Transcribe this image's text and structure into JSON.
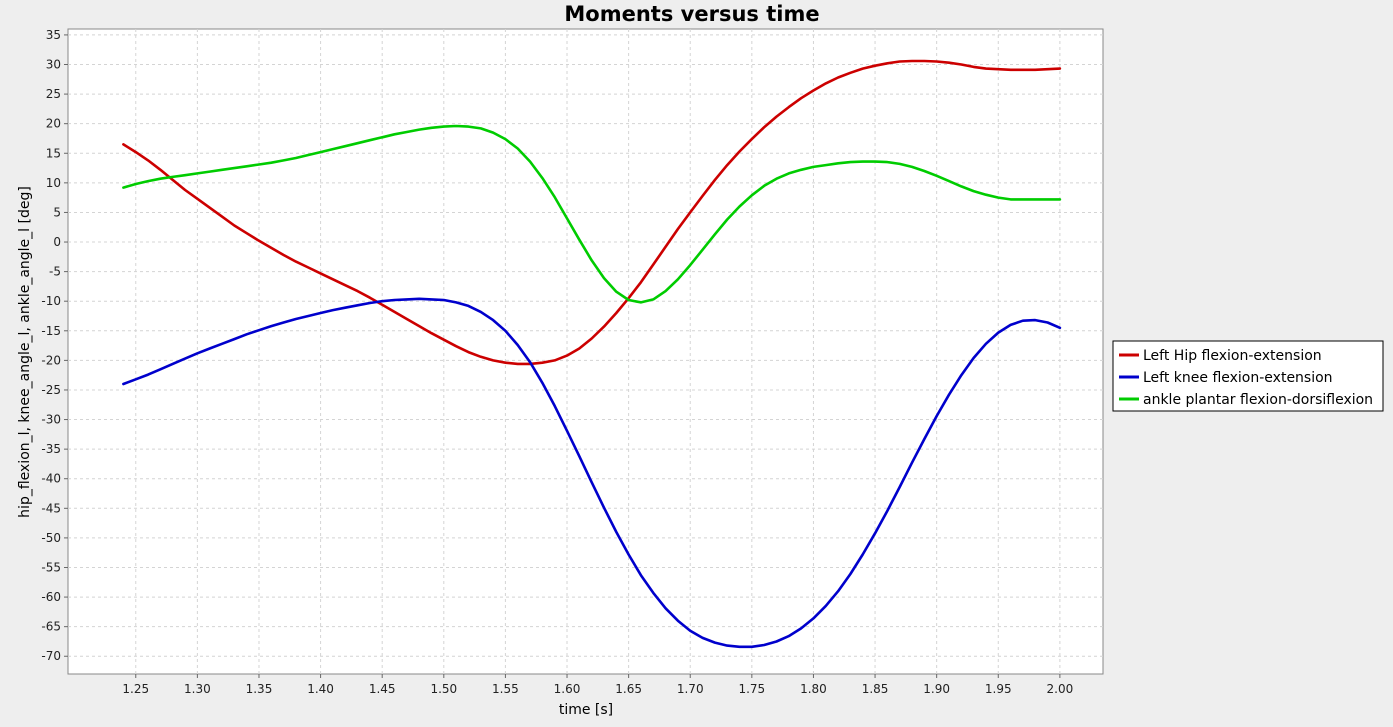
{
  "chart_data": {
    "type": "line",
    "title": "Moments versus time",
    "xlabel": "time [s]",
    "ylabel": "hip_flexion_l, knee_angle_l, ankle_angle_l [deg]",
    "xlim": [
      1.195,
      2.035
    ],
    "ylim": [
      -73,
      36
    ],
    "xticks": [
      "1.25",
      "1.30",
      "1.35",
      "1.40",
      "1.45",
      "1.50",
      "1.55",
      "1.60",
      "1.65",
      "1.70",
      "1.75",
      "1.80",
      "1.85",
      "1.90",
      "1.95",
      "2.00"
    ],
    "yticks": [
      "35",
      "30",
      "25",
      "20",
      "15",
      "10",
      "5",
      "0",
      "-5",
      "-10",
      "-15",
      "-20",
      "-25",
      "-30",
      "-35",
      "-40",
      "-45",
      "-50",
      "-55",
      "-60",
      "-65",
      "-70"
    ],
    "grid": true,
    "legend_position": "right",
    "series": [
      {
        "name": "Left Hip flexion-extension",
        "color": "#cc0000",
        "x": [
          1.24,
          1.25,
          1.26,
          1.27,
          1.28,
          1.29,
          1.3,
          1.31,
          1.32,
          1.33,
          1.34,
          1.35,
          1.36,
          1.37,
          1.38,
          1.39,
          1.4,
          1.41,
          1.42,
          1.43,
          1.44,
          1.45,
          1.46,
          1.47,
          1.48,
          1.49,
          1.5,
          1.51,
          1.52,
          1.53,
          1.54,
          1.55,
          1.56,
          1.57,
          1.58,
          1.59,
          1.6,
          1.61,
          1.62,
          1.63,
          1.64,
          1.65,
          1.66,
          1.67,
          1.68,
          1.69,
          1.7,
          1.71,
          1.72,
          1.73,
          1.74,
          1.75,
          1.76,
          1.77,
          1.78,
          1.79,
          1.8,
          1.81,
          1.82,
          1.83,
          1.84,
          1.85,
          1.86,
          1.87,
          1.88,
          1.89,
          1.9,
          1.91,
          1.92,
          1.93,
          1.94,
          1.95,
          1.96,
          1.97,
          1.98,
          1.99,
          2.0
        ],
        "y": [
          16.5,
          15.2,
          13.8,
          12.2,
          10.5,
          8.8,
          7.3,
          5.8,
          4.3,
          2.8,
          1.5,
          0.2,
          -1.0,
          -2.2,
          -3.3,
          -4.3,
          -5.3,
          -6.3,
          -7.3,
          -8.3,
          -9.4,
          -10.6,
          -11.8,
          -13.0,
          -14.2,
          -15.4,
          -16.5,
          -17.6,
          -18.6,
          -19.4,
          -20.0,
          -20.4,
          -20.6,
          -20.6,
          -20.4,
          -20.0,
          -19.2,
          -18.0,
          -16.3,
          -14.3,
          -12.0,
          -9.5,
          -6.8,
          -3.8,
          -0.8,
          2.2,
          5.0,
          7.8,
          10.5,
          13.0,
          15.3,
          17.4,
          19.4,
          21.2,
          22.8,
          24.3,
          25.6,
          26.8,
          27.8,
          28.6,
          29.3,
          29.8,
          30.2,
          30.5,
          30.6,
          30.6,
          30.5,
          30.3,
          30.0,
          29.6,
          29.3,
          29.2,
          29.1,
          29.1,
          29.1,
          29.2,
          29.3
        ]
      },
      {
        "name": "Left knee flexion-extension",
        "color": "#0000cc",
        "x": [
          1.24,
          1.25,
          1.26,
          1.27,
          1.28,
          1.29,
          1.3,
          1.31,
          1.32,
          1.33,
          1.34,
          1.35,
          1.36,
          1.37,
          1.38,
          1.39,
          1.4,
          1.41,
          1.42,
          1.43,
          1.44,
          1.45,
          1.46,
          1.47,
          1.48,
          1.49,
          1.5,
          1.51,
          1.52,
          1.53,
          1.54,
          1.55,
          1.56,
          1.57,
          1.58,
          1.59,
          1.6,
          1.61,
          1.62,
          1.63,
          1.64,
          1.65,
          1.66,
          1.67,
          1.68,
          1.69,
          1.7,
          1.71,
          1.72,
          1.73,
          1.74,
          1.75,
          1.76,
          1.77,
          1.78,
          1.79,
          1.8,
          1.81,
          1.82,
          1.83,
          1.84,
          1.85,
          1.86,
          1.87,
          1.88,
          1.89,
          1.9,
          1.91,
          1.92,
          1.93,
          1.94,
          1.95,
          1.96,
          1.97,
          1.98,
          1.99,
          2.0
        ],
        "y": [
          -24.0,
          -23.2,
          -22.4,
          -21.5,
          -20.6,
          -19.7,
          -18.8,
          -18.0,
          -17.2,
          -16.4,
          -15.6,
          -14.9,
          -14.2,
          -13.6,
          -13.0,
          -12.5,
          -12.0,
          -11.5,
          -11.1,
          -10.7,
          -10.3,
          -10.0,
          -9.8,
          -9.7,
          -9.6,
          -9.7,
          -9.8,
          -10.2,
          -10.8,
          -11.8,
          -13.2,
          -15.0,
          -17.4,
          -20.3,
          -23.8,
          -27.7,
          -31.9,
          -36.2,
          -40.6,
          -44.9,
          -49.0,
          -52.8,
          -56.3,
          -59.3,
          -61.9,
          -64.0,
          -65.7,
          -66.9,
          -67.7,
          -68.2,
          -68.4,
          -68.4,
          -68.1,
          -67.5,
          -66.6,
          -65.3,
          -63.6,
          -61.5,
          -59.0,
          -56.1,
          -52.8,
          -49.2,
          -45.4,
          -41.4,
          -37.3,
          -33.3,
          -29.4,
          -25.8,
          -22.5,
          -19.6,
          -17.2,
          -15.3,
          -14.0,
          -13.3,
          -13.2,
          -13.6,
          -14.5
        ]
      },
      {
        "name": "ankle plantar flexion-dorsiflexion",
        "color": "#00cc00",
        "x": [
          1.24,
          1.25,
          1.26,
          1.27,
          1.28,
          1.29,
          1.3,
          1.31,
          1.32,
          1.33,
          1.34,
          1.35,
          1.36,
          1.37,
          1.38,
          1.39,
          1.4,
          1.41,
          1.42,
          1.43,
          1.44,
          1.45,
          1.46,
          1.47,
          1.48,
          1.49,
          1.5,
          1.51,
          1.52,
          1.53,
          1.54,
          1.55,
          1.56,
          1.57,
          1.58,
          1.59,
          1.6,
          1.61,
          1.62,
          1.63,
          1.64,
          1.65,
          1.66,
          1.67,
          1.68,
          1.69,
          1.7,
          1.71,
          1.72,
          1.73,
          1.74,
          1.75,
          1.76,
          1.77,
          1.78,
          1.79,
          1.8,
          1.81,
          1.82,
          1.83,
          1.84,
          1.85,
          1.86,
          1.87,
          1.88,
          1.89,
          1.9,
          1.91,
          1.92,
          1.93,
          1.94,
          1.95,
          1.96,
          1.97,
          1.98,
          1.99,
          2.0
        ],
        "y": [
          9.2,
          9.8,
          10.3,
          10.7,
          11.0,
          11.3,
          11.6,
          11.9,
          12.2,
          12.5,
          12.8,
          13.1,
          13.4,
          13.8,
          14.2,
          14.7,
          15.2,
          15.7,
          16.2,
          16.7,
          17.2,
          17.7,
          18.2,
          18.6,
          19.0,
          19.3,
          19.5,
          19.6,
          19.5,
          19.2,
          18.5,
          17.4,
          15.8,
          13.6,
          10.8,
          7.6,
          4.0,
          0.4,
          -3.1,
          -6.1,
          -8.4,
          -9.8,
          -10.2,
          -9.7,
          -8.3,
          -6.3,
          -3.9,
          -1.3,
          1.3,
          3.8,
          6.0,
          7.9,
          9.5,
          10.7,
          11.6,
          12.2,
          12.7,
          13.0,
          13.3,
          13.5,
          13.6,
          13.6,
          13.5,
          13.2,
          12.7,
          12.0,
          11.2,
          10.3,
          9.4,
          8.6,
          8.0,
          7.5,
          7.2,
          7.2,
          7.2,
          7.2,
          7.2
        ]
      }
    ]
  }
}
